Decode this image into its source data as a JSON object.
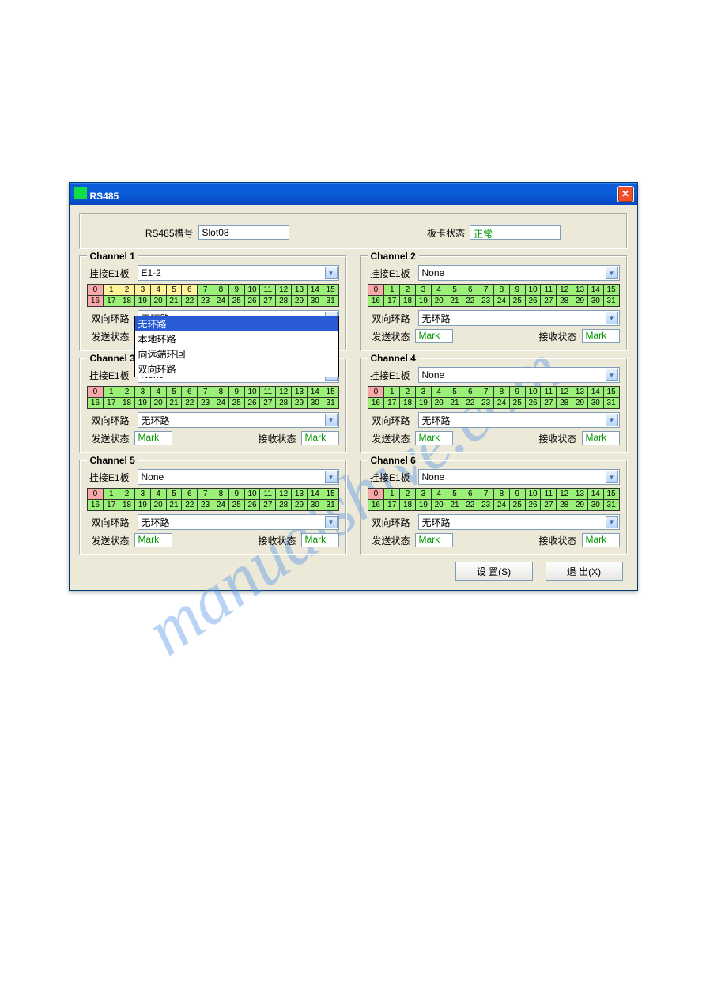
{
  "window_title": "RS485",
  "top": {
    "slot_label": "RS485槽号",
    "slot_value": "Slot08",
    "card_label": "板卡状态",
    "card_value": "正常"
  },
  "labels": {
    "e1": "挂接E1板",
    "loop": "双向环路",
    "send": "发送状态",
    "recv": "接收状态"
  },
  "loop_options": [
    "无环路",
    "本地环路",
    "向远端环回",
    "双向环路"
  ],
  "colors": {
    "cell_green": "#9bf178",
    "cell_red": "#f7a8a8",
    "cell_yellow": "#fff49a",
    "status_green": "#009900",
    "titlebar": "#0b5cd8"
  },
  "buttons": {
    "set": "设  置(S)",
    "exit": "退 出(X)"
  },
  "channels": [
    {
      "title": "Channel 1",
      "e1_value": "E1-2",
      "loop_value": "无环路",
      "dropdown_open": true,
      "dropdown_selected": 0,
      "send_value": "",
      "recv_value": "",
      "show_status": false,
      "cells": [
        {
          "n": 0,
          "c": "red"
        },
        {
          "n": 1,
          "c": "yellow"
        },
        {
          "n": 2,
          "c": "yellow"
        },
        {
          "n": 3,
          "c": "yellow"
        },
        {
          "n": 4,
          "c": "yellow"
        },
        {
          "n": 5,
          "c": "yellow"
        },
        {
          "n": 6,
          "c": "yellow"
        },
        {
          "n": 7
        },
        {
          "n": 8
        },
        {
          "n": 9
        },
        {
          "n": 10
        },
        {
          "n": 11
        },
        {
          "n": 12
        },
        {
          "n": 13
        },
        {
          "n": 14
        },
        {
          "n": 15
        },
        {
          "n": 16,
          "c": "red"
        },
        {
          "n": 17
        },
        {
          "n": 18
        },
        {
          "n": 19
        },
        {
          "n": 20
        },
        {
          "n": 21
        },
        {
          "n": 22
        },
        {
          "n": 23
        },
        {
          "n": 24
        },
        {
          "n": 25
        },
        {
          "n": 26
        },
        {
          "n": 27
        },
        {
          "n": 28
        },
        {
          "n": 29
        },
        {
          "n": 30
        },
        {
          "n": 31
        }
      ]
    },
    {
      "title": "Channel 2",
      "e1_value": "None",
      "loop_value": "无环路",
      "send_value": "Mark",
      "recv_value": "Mark",
      "show_status": true,
      "cells": [
        {
          "n": 0,
          "c": "red"
        },
        {
          "n": 1
        },
        {
          "n": 2
        },
        {
          "n": 3
        },
        {
          "n": 4
        },
        {
          "n": 5
        },
        {
          "n": 6
        },
        {
          "n": 7
        },
        {
          "n": 8
        },
        {
          "n": 9
        },
        {
          "n": 10
        },
        {
          "n": 11
        },
        {
          "n": 12
        },
        {
          "n": 13
        },
        {
          "n": 14
        },
        {
          "n": 15
        },
        {
          "n": 16
        },
        {
          "n": 17
        },
        {
          "n": 18
        },
        {
          "n": 19
        },
        {
          "n": 20
        },
        {
          "n": 21
        },
        {
          "n": 22
        },
        {
          "n": 23
        },
        {
          "n": 24
        },
        {
          "n": 25
        },
        {
          "n": 26
        },
        {
          "n": 27
        },
        {
          "n": 28
        },
        {
          "n": 29
        },
        {
          "n": 30
        },
        {
          "n": 31
        }
      ]
    },
    {
      "title": "Channel 3",
      "e1_value": "None",
      "loop_value": "无环路",
      "send_value": "Mark",
      "recv_value": "Mark",
      "show_status": true,
      "cells": [
        {
          "n": 0,
          "c": "red"
        },
        {
          "n": 1
        },
        {
          "n": 2
        },
        {
          "n": 3
        },
        {
          "n": 4
        },
        {
          "n": 5
        },
        {
          "n": 6
        },
        {
          "n": 7
        },
        {
          "n": 8
        },
        {
          "n": 9
        },
        {
          "n": 10
        },
        {
          "n": 11
        },
        {
          "n": 12
        },
        {
          "n": 13
        },
        {
          "n": 14
        },
        {
          "n": 15
        },
        {
          "n": 16
        },
        {
          "n": 17
        },
        {
          "n": 18
        },
        {
          "n": 19
        },
        {
          "n": 20
        },
        {
          "n": 21
        },
        {
          "n": 22
        },
        {
          "n": 23
        },
        {
          "n": 24
        },
        {
          "n": 25
        },
        {
          "n": 26
        },
        {
          "n": 27
        },
        {
          "n": 28
        },
        {
          "n": 29
        },
        {
          "n": 30
        },
        {
          "n": 31
        }
      ]
    },
    {
      "title": "Channel 4",
      "e1_value": "None",
      "loop_value": "无环路",
      "send_value": "Mark",
      "recv_value": "Mark",
      "show_status": true,
      "cells": [
        {
          "n": 0,
          "c": "red"
        },
        {
          "n": 1
        },
        {
          "n": 2
        },
        {
          "n": 3
        },
        {
          "n": 4
        },
        {
          "n": 5
        },
        {
          "n": 6
        },
        {
          "n": 7
        },
        {
          "n": 8
        },
        {
          "n": 9
        },
        {
          "n": 10
        },
        {
          "n": 11
        },
        {
          "n": 12
        },
        {
          "n": 13
        },
        {
          "n": 14
        },
        {
          "n": 15
        },
        {
          "n": 16
        },
        {
          "n": 17
        },
        {
          "n": 18
        },
        {
          "n": 19
        },
        {
          "n": 20
        },
        {
          "n": 21
        },
        {
          "n": 22
        },
        {
          "n": 23
        },
        {
          "n": 24
        },
        {
          "n": 25
        },
        {
          "n": 26
        },
        {
          "n": 27
        },
        {
          "n": 28
        },
        {
          "n": 29
        },
        {
          "n": 30
        },
        {
          "n": 31
        }
      ]
    },
    {
      "title": "Channel 5",
      "e1_value": "None",
      "loop_value": "无环路",
      "send_value": "Mark",
      "recv_value": "Mark",
      "show_status": true,
      "cells": [
        {
          "n": 0,
          "c": "red"
        },
        {
          "n": 1
        },
        {
          "n": 2
        },
        {
          "n": 3
        },
        {
          "n": 4
        },
        {
          "n": 5
        },
        {
          "n": 6
        },
        {
          "n": 7
        },
        {
          "n": 8
        },
        {
          "n": 9
        },
        {
          "n": 10
        },
        {
          "n": 11
        },
        {
          "n": 12
        },
        {
          "n": 13
        },
        {
          "n": 14
        },
        {
          "n": 15
        },
        {
          "n": 16
        },
        {
          "n": 17
        },
        {
          "n": 18
        },
        {
          "n": 19
        },
        {
          "n": 20
        },
        {
          "n": 21
        },
        {
          "n": 22
        },
        {
          "n": 23
        },
        {
          "n": 24
        },
        {
          "n": 25
        },
        {
          "n": 26
        },
        {
          "n": 27
        },
        {
          "n": 28
        },
        {
          "n": 29
        },
        {
          "n": 30
        },
        {
          "n": 31
        }
      ]
    },
    {
      "title": "Channel 6",
      "e1_value": "None",
      "loop_value": "无环路",
      "send_value": "Mark",
      "recv_value": "Mark",
      "show_status": true,
      "cells": [
        {
          "n": 0,
          "c": "red"
        },
        {
          "n": 1
        },
        {
          "n": 2
        },
        {
          "n": 3
        },
        {
          "n": 4
        },
        {
          "n": 5
        },
        {
          "n": 6
        },
        {
          "n": 7
        },
        {
          "n": 8
        },
        {
          "n": 9
        },
        {
          "n": 10
        },
        {
          "n": 11
        },
        {
          "n": 12
        },
        {
          "n": 13
        },
        {
          "n": 14
        },
        {
          "n": 15
        },
        {
          "n": 16
        },
        {
          "n": 17
        },
        {
          "n": 18
        },
        {
          "n": 19
        },
        {
          "n": 20
        },
        {
          "n": 21
        },
        {
          "n": 22
        },
        {
          "n": 23
        },
        {
          "n": 24
        },
        {
          "n": 25
        },
        {
          "n": 26
        },
        {
          "n": 27
        },
        {
          "n": 28
        },
        {
          "n": 29
        },
        {
          "n": 30
        },
        {
          "n": 31
        }
      ]
    }
  ],
  "watermark": "manualshive.com"
}
